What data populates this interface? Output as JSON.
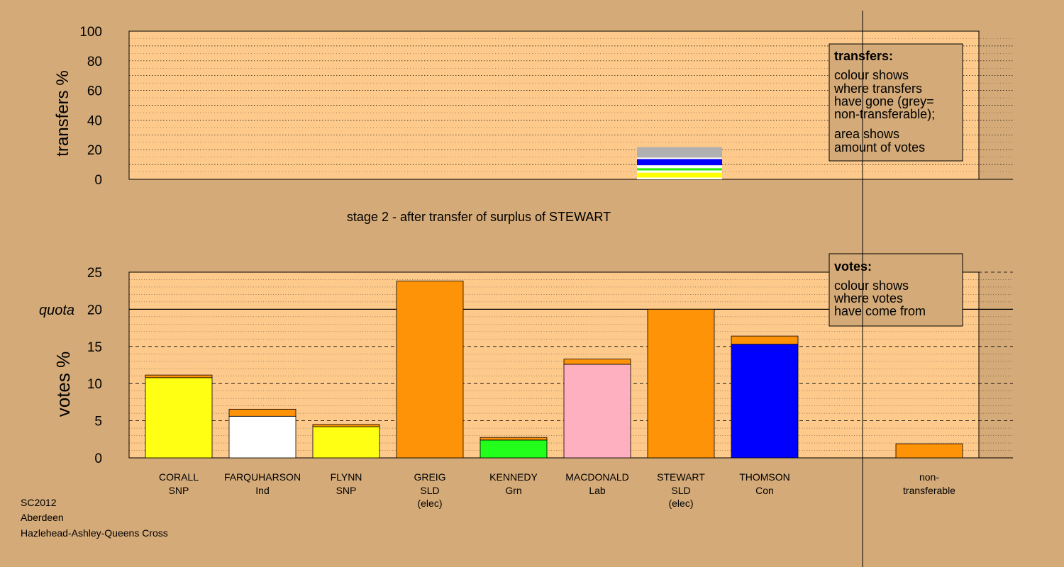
{
  "chart_data": [
    {
      "type": "bar",
      "stacked": true,
      "ylabel": "transfers %",
      "ylim": [
        0,
        100
      ],
      "yticks": [
        0,
        20,
        40,
        60,
        80,
        100
      ],
      "grid": "dotted",
      "title": "stage 2 - after transfer of surplus of STEWART",
      "categories": [
        "STEWART"
      ],
      "segments": [
        {
          "color": "#ffffff",
          "value": 1.2
        },
        {
          "color": "#ffff00",
          "value": 3.3
        },
        {
          "color": "#ffffff",
          "value": 1.5
        },
        {
          "color": "#22ee00",
          "value": 1.5
        },
        {
          "color": "#ffffff",
          "value": 2.0
        },
        {
          "color": "#0000ff",
          "value": 4.2
        },
        {
          "color": "#ffffff",
          "value": 1.0
        },
        {
          "color": "#b0b0b0",
          "value": 7.0
        }
      ],
      "legend": {
        "heading": "transfers:",
        "lines1": [
          "colour shows",
          "where transfers",
          "have gone (grey=",
          "non-transferable);"
        ],
        "lines2": [
          "area shows",
          "amount of votes"
        ]
      }
    },
    {
      "type": "bar",
      "stacked": true,
      "ylabel": "votes %",
      "ylim": [
        0,
        25
      ],
      "yticks": [
        0,
        5,
        10,
        15,
        20,
        25
      ],
      "quota": 20,
      "quota_label": "quota",
      "grid": "dashed",
      "categories": [
        {
          "name": "CORALL",
          "party": "SNP",
          "note": ""
        },
        {
          "name": "FARQUHARSON",
          "party": "Ind",
          "note": ""
        },
        {
          "name": "FLYNN",
          "party": "SNP",
          "note": ""
        },
        {
          "name": "GREIG",
          "party": "SLD",
          "note": "(elec)"
        },
        {
          "name": "KENNEDY",
          "party": "Grn",
          "note": ""
        },
        {
          "name": "MACDONALD",
          "party": "Lab",
          "note": ""
        },
        {
          "name": "STEWART",
          "party": "SLD",
          "note": "(elec)"
        },
        {
          "name": "THOMSON",
          "party": "Con",
          "note": ""
        }
      ],
      "non_transferable": {
        "line1": "non-",
        "line2": "transferable",
        "value": 1.9,
        "color": "#ff9308"
      },
      "series": [
        {
          "own": 10.8,
          "own_color": "#ffff14",
          "transfer": 0.35,
          "transfer_color": "#ff9308"
        },
        {
          "own": 5.6,
          "own_color": "#ffffff",
          "transfer": 0.95,
          "transfer_color": "#ff9308"
        },
        {
          "own": 4.2,
          "own_color": "#ffff14",
          "transfer": 0.3,
          "transfer_color": "#ff9308"
        },
        {
          "own": 23.8,
          "own_color": "#ff9308",
          "transfer": 0.0,
          "transfer_color": "#ff9308"
        },
        {
          "own": 2.4,
          "own_color": "#22ff1a",
          "transfer": 0.35,
          "transfer_color": "#ff9308"
        },
        {
          "own": 12.6,
          "own_color": "#ffb0c0",
          "transfer": 0.7,
          "transfer_color": "#ff9308"
        },
        {
          "own": 20.0,
          "own_color": "#ff9308",
          "transfer": 0.0,
          "transfer_color": "#ff9308"
        },
        {
          "own": 15.3,
          "own_color": "#0000ff",
          "transfer": 1.1,
          "transfer_color": "#ff9308"
        }
      ],
      "legend": {
        "heading": "votes:",
        "lines": [
          "colour shows",
          "where votes",
          "have come from"
        ]
      }
    }
  ],
  "footer": {
    "line1": "SC2012",
    "line2": "Aberdeen",
    "line3": "Hazlehead-Ashley-Queens Cross"
  },
  "colors": {
    "background": "#d4aa78",
    "plot_bg": "#fdca8c",
    "legend_bg": "#d4aa78"
  }
}
